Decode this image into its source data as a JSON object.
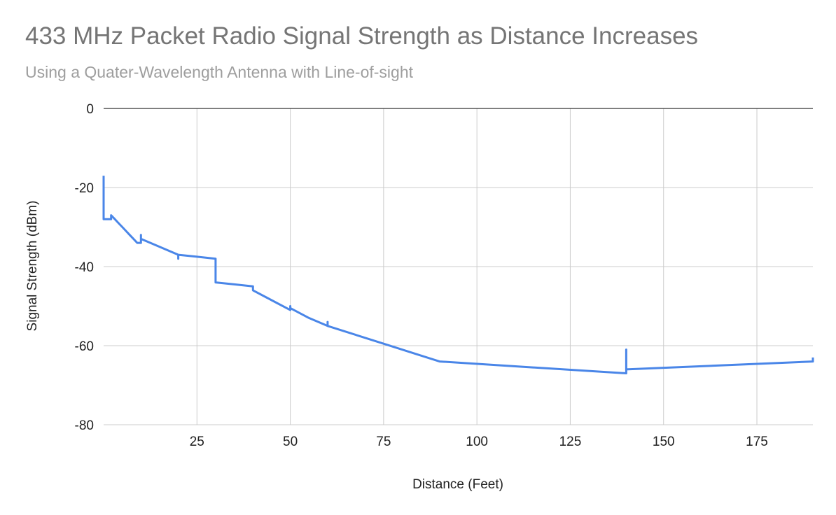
{
  "chart_data": {
    "type": "line",
    "title": "433 MHz Packet Radio Signal Strength as Distance Increases",
    "subtitle": "Using a Quater-Wavelength Antenna with Line-of-sight",
    "xlabel": "Distance (Feet)",
    "ylabel": "Signal Strength (dBm)",
    "xlim": [
      0,
      190
    ],
    "ylim": [
      -80,
      0
    ],
    "xticks": [
      25,
      50,
      75,
      100,
      125,
      150,
      175
    ],
    "yticks": [
      0,
      -20,
      -40,
      -60,
      -80
    ],
    "grid": true,
    "legend": "none",
    "series": [
      {
        "color": "#4a86e8",
        "x": [
          0,
          0,
          0,
          0.3,
          0.5,
          1,
          1.5,
          2,
          2,
          2,
          3,
          4,
          5,
          6,
          7,
          8,
          9,
          10,
          10,
          10,
          15,
          20,
          20,
          20,
          25,
          30,
          30,
          30,
          35,
          40,
          40,
          40,
          45,
          50,
          50,
          50,
          55,
          60,
          60,
          60,
          75,
          90,
          115,
          140,
          140,
          140,
          165,
          190,
          190
        ],
        "y": [
          -17,
          -22,
          -28,
          -28,
          -28,
          -28,
          -28,
          -28,
          -28,
          -27,
          -28,
          -29,
          -30,
          -31,
          -32,
          -33,
          -34,
          -34,
          -32,
          -33,
          -35,
          -37,
          -38,
          -37,
          -37.5,
          -38,
          -44,
          -44,
          -44.5,
          -45,
          -46,
          -46,
          -48.5,
          -51,
          -50,
          -50.5,
          -53,
          -55,
          -54,
          -55,
          -59.5,
          -64,
          -65.5,
          -67,
          -61,
          -66,
          -65,
          -64,
          -63
        ]
      }
    ]
  }
}
